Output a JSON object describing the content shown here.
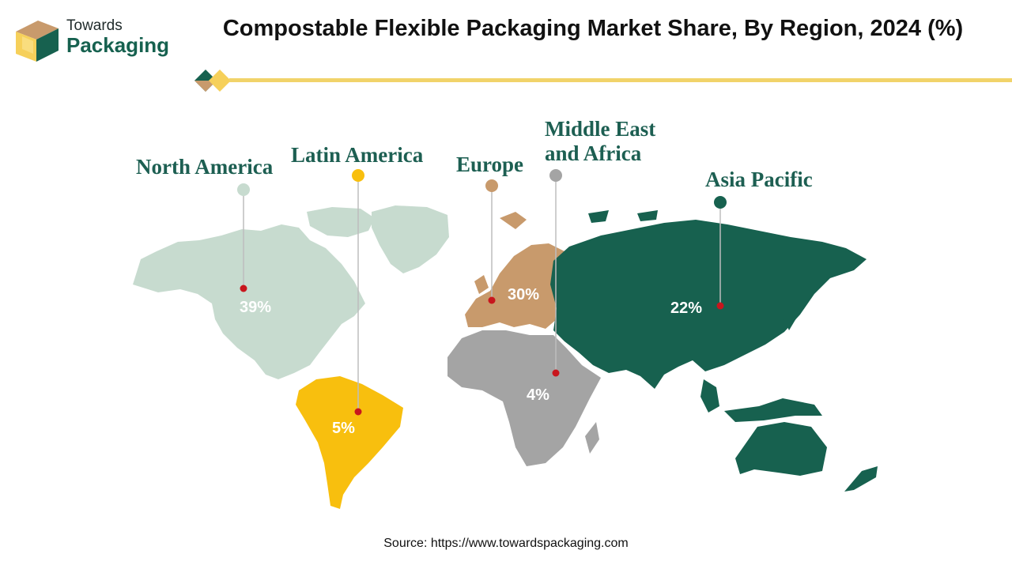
{
  "brand": {
    "line1": "Towards",
    "line2": "Packaging"
  },
  "title": "Compostable Flexible Packaging Market Share, By Region, 2024 (%)",
  "source": "Source: https://www.towardspackaging.com",
  "colors": {
    "north_america": "#c7dbcf",
    "latin_america": "#f8bf0e",
    "europe": "#c89a6c",
    "middle_east_africa": "#a4a4a4",
    "asia_pacific": "#17614f",
    "accent_line": "#f1d36a",
    "marker_dot": "#c8161d"
  },
  "regions": [
    {
      "id": "north_america",
      "label": "North America",
      "value": "39%"
    },
    {
      "id": "latin_america",
      "label": "Latin America",
      "value": "5%"
    },
    {
      "id": "europe",
      "label": "Europe",
      "value": "30%"
    },
    {
      "id": "middle_east_africa",
      "label": "Middle East and Africa",
      "value": "4%"
    },
    {
      "id": "asia_pacific",
      "label": "Asia Pacific",
      "value": "22%"
    }
  ]
}
